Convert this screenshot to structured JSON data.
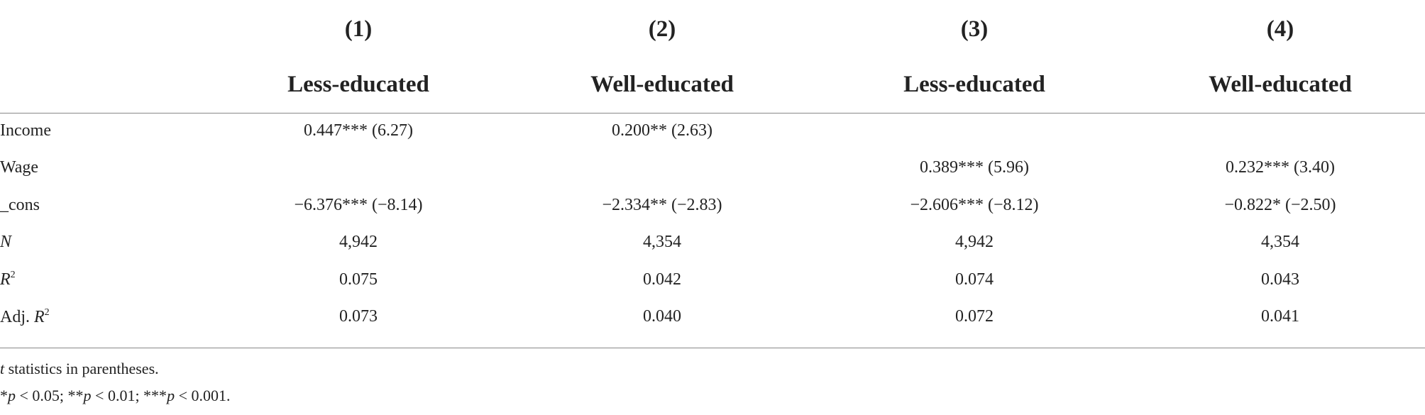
{
  "table": {
    "column_numbers": [
      "(1)",
      "(2)",
      "(3)",
      "(4)"
    ],
    "column_groups": [
      "Less-educated",
      "Well-educated",
      "Less-educated",
      "Well-educated"
    ],
    "rows": [
      {
        "label": [
          "Income"
        ],
        "cells": [
          "0.447*** (6.27)",
          "0.200** (2.63)",
          "",
          ""
        ]
      },
      {
        "label": [
          "Wage"
        ],
        "cells": [
          "",
          "",
          "0.389*** (5.96)",
          "0.232*** (3.40)"
        ]
      },
      {
        "label": [
          "_cons"
        ],
        "cells": [
          "−6.376*** (−8.14)",
          "−2.334** (−2.83)",
          "−2.606*** (−8.12)",
          "−0.822* (−2.50)"
        ]
      },
      {
        "label": [
          "N"
        ],
        "cells": [
          "4,942",
          "4,354",
          "4,942",
          "4,354"
        ]
      },
      {
        "label": [
          "R",
          "2"
        ],
        "cells": [
          "0.075",
          "0.042",
          "0.074",
          "0.043"
        ]
      },
      {
        "label": [
          "Adj. ",
          "R",
          "2"
        ],
        "cells": [
          "0.073",
          "0.040",
          "0.072",
          "0.041"
        ]
      }
    ],
    "notes": [
      [
        "t",
        " statistics in parentheses."
      ],
      [
        "*",
        "p",
        " < 0.05; **",
        "p",
        " < 0.01; ***",
        "p",
        " < 0.001."
      ]
    ]
  }
}
